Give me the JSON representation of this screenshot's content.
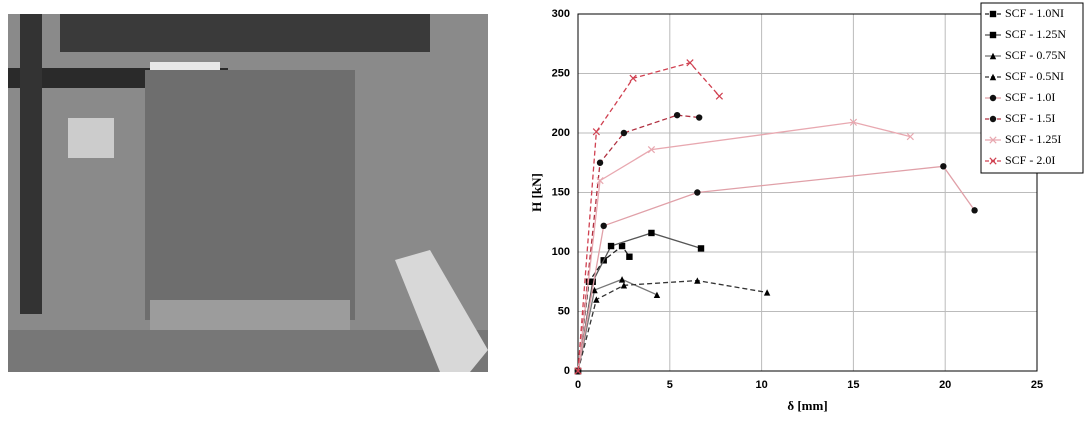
{
  "chart_data": {
    "type": "line",
    "xlabel": "δ [mm]",
    "ylabel": "H [kN]",
    "xlim": [
      0,
      25
    ],
    "xticks": [
      0,
      5,
      10,
      15,
      20,
      25
    ],
    "ylim": [
      0,
      300
    ],
    "yticks": [
      0,
      50,
      100,
      150,
      200,
      250,
      300
    ],
    "grid": true,
    "legend": "upper right",
    "series": [
      {
        "name": "SCF - 1.0NI",
        "color": "#222222",
        "marker": "square",
        "dashed": true,
        "x": [
          0,
          0.6,
          1.4,
          2.4,
          2.8
        ],
        "values": [
          0,
          75,
          93,
          105,
          96
        ]
      },
      {
        "name": "SCF - 1.25N",
        "color": "#555555",
        "marker": "square",
        "dashed": false,
        "x": [
          0,
          0.8,
          1.8,
          4,
          6.7
        ],
        "values": [
          0,
          75,
          105,
          116,
          103
        ]
      },
      {
        "name": "SCF - 0.75N",
        "color": "#777777",
        "marker": "triangle",
        "dashed": false,
        "x": [
          0,
          0.9,
          2.4,
          4.3
        ],
        "values": [
          0,
          68,
          77,
          64
        ]
      },
      {
        "name": "SCF - 0.5NI",
        "color": "#333333",
        "marker": "triangle",
        "dashed": true,
        "x": [
          0,
          1,
          2.5,
          6.5,
          10.3
        ],
        "values": [
          0,
          60,
          72,
          76,
          66
        ]
      },
      {
        "name": "SCF - 1.0I",
        "color": "#e0a0a8",
        "marker": "circle",
        "dashed": false,
        "x": [
          0,
          1.4,
          6.5,
          19.9,
          21.6
        ],
        "values": [
          0,
          122,
          150,
          172,
          135
        ]
      },
      {
        "name": "SCF - 1.5I",
        "color": "#b03040",
        "marker": "circle",
        "dashed": true,
        "x": [
          0,
          1.2,
          2.5,
          5.4,
          6.6
        ],
        "values": [
          0,
          175,
          200,
          215,
          213
        ]
      },
      {
        "name": "SCF - 1.25I",
        "color": "#e8a8b0",
        "marker": "cross",
        "dashed": false,
        "x": [
          0,
          1.2,
          4,
          15,
          18.1
        ],
        "values": [
          0,
          160,
          186,
          209,
          197
        ]
      },
      {
        "name": "SCF - 2.0I",
        "color": "#d04050",
        "marker": "cross",
        "dashed": true,
        "x": [
          0,
          1,
          3,
          6.1,
          7.7
        ],
        "values": [
          0,
          201,
          246,
          259,
          231
        ]
      }
    ]
  }
}
